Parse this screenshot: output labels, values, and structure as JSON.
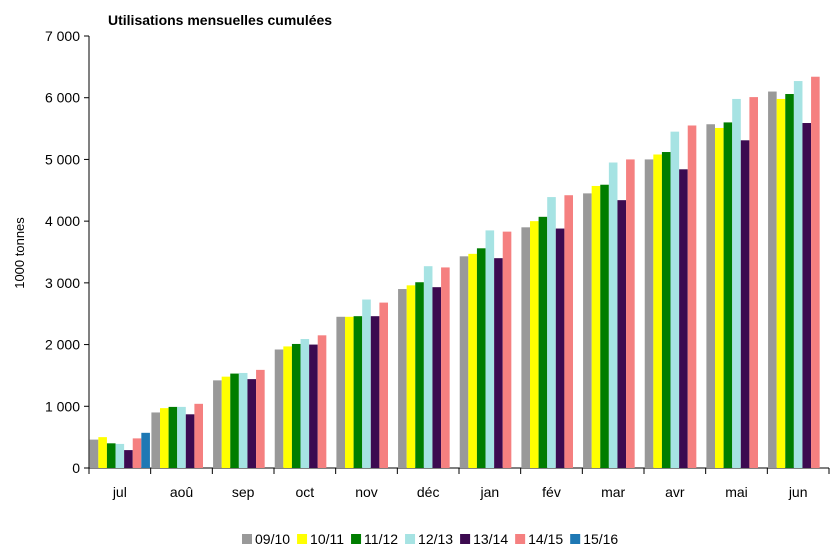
{
  "chart_data": {
    "type": "bar",
    "title": "Utilisations mensuelles cumulées",
    "xlabel": "",
    "ylabel": "1000 tonnes",
    "ylim": [
      0,
      7000
    ],
    "yticks": [
      0,
      1000,
      2000,
      3000,
      4000,
      5000,
      6000,
      7000
    ],
    "ytick_labels": [
      "0",
      "1 000",
      "2 000",
      "3 000",
      "4 000",
      "5 000",
      "6 000",
      "7 000"
    ],
    "categories": [
      "jul",
      "aoû",
      "sep",
      "oct",
      "nov",
      "déc",
      "jan",
      "fév",
      "mar",
      "avr",
      "mai",
      "jun"
    ],
    "grid": false,
    "legend_position": "bottom",
    "series": [
      {
        "name": "09/10",
        "color": "#999999",
        "values": [
          460,
          900,
          1420,
          1920,
          2450,
          2900,
          3430,
          3900,
          4450,
          5000,
          5570,
          6100
        ]
      },
      {
        "name": "10/11",
        "color": "#ffff00",
        "values": [
          500,
          970,
          1480,
          1970,
          2450,
          2960,
          3470,
          4000,
          4570,
          5080,
          5510,
          5980
        ]
      },
      {
        "name": "11/12",
        "color": "#007d00",
        "values": [
          400,
          990,
          1530,
          2010,
          2460,
          3010,
          3560,
          4070,
          4590,
          5120,
          5600,
          6060
        ]
      },
      {
        "name": "12/13",
        "color": "#a6e3e3",
        "values": [
          390,
          990,
          1540,
          2090,
          2730,
          3270,
          3850,
          4390,
          4950,
          5450,
          5980,
          6270
        ]
      },
      {
        "name": "13/14",
        "color": "#3c0a50",
        "values": [
          290,
          870,
          1440,
          2000,
          2460,
          2930,
          3400,
          3880,
          4340,
          4840,
          5310,
          5590
        ]
      },
      {
        "name": "14/15",
        "color": "#f58080",
        "values": [
          480,
          1040,
          1590,
          2150,
          2680,
          3250,
          3830,
          4420,
          5000,
          5550,
          6010,
          6340
        ]
      },
      {
        "name": "15/16",
        "color": "#1e78b4",
        "values": [
          570,
          null,
          null,
          null,
          null,
          null,
          null,
          null,
          null,
          null,
          null,
          null
        ]
      }
    ]
  }
}
